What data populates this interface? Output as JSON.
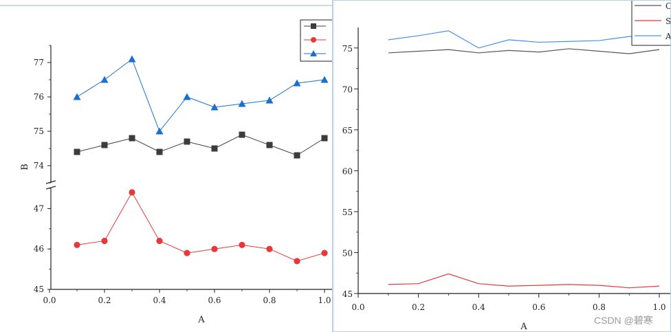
{
  "chart_data": [
    {
      "type": "line",
      "xlabel": "A",
      "ylabel": "B",
      "xlim": [
        0.0,
        1.0
      ],
      "y_upper_range": [
        73.5,
        77.5
      ],
      "y_lower_range": [
        45,
        47.5
      ],
      "axis_break": true,
      "x_ticks": [
        "0.0",
        "0.2",
        "0.4",
        "0.6",
        "0.8",
        "1.0"
      ],
      "y_ticks_upper": [
        "74",
        "75",
        "76",
        "77"
      ],
      "y_ticks_lower": [
        "45",
        "46",
        "47"
      ],
      "legend": {
        "placement": "top-right",
        "labels": [
          "",
          "",
          ""
        ]
      },
      "x": [
        0.1,
        0.2,
        0.3,
        0.4,
        0.5,
        0.6,
        0.7,
        0.8,
        0.9,
        1.0
      ],
      "series": [
        {
          "marker": "square",
          "color": "#3c3c3c",
          "values": [
            74.4,
            74.6,
            74.8,
            74.4,
            74.7,
            74.5,
            74.9,
            74.6,
            74.3,
            74.8
          ]
        },
        {
          "marker": "circle",
          "color": "#e8383b",
          "values": [
            46.1,
            46.2,
            47.4,
            46.2,
            45.9,
            46.0,
            46.1,
            46.0,
            45.7,
            45.9
          ]
        },
        {
          "marker": "triangle",
          "color": "#1a6fd1",
          "values": [
            76.0,
            76.5,
            77.1,
            75.0,
            76.0,
            75.7,
            75.8,
            75.9,
            76.4,
            76.5
          ]
        }
      ]
    },
    {
      "type": "line",
      "xlabel": "A",
      "ylabel": "",
      "xlim": [
        0.0,
        1.0
      ],
      "ylim": [
        45,
        77.5
      ],
      "x_ticks": [
        "0.0",
        "0.2",
        "0.4",
        "0.6",
        "0.8",
        "1.0"
      ],
      "y_ticks": [
        "45",
        "50",
        "55",
        "60",
        "65",
        "70",
        "75"
      ],
      "legend": {
        "placement": "top-right",
        "labels": [
          "C",
          "S",
          "A"
        ]
      },
      "x": [
        0.1,
        0.2,
        0.3,
        0.4,
        0.5,
        0.6,
        0.7,
        0.8,
        0.9,
        1.0
      ],
      "series": [
        {
          "color": "#555555",
          "values": [
            74.4,
            74.6,
            74.8,
            74.4,
            74.7,
            74.5,
            74.9,
            74.6,
            74.3,
            74.8
          ]
        },
        {
          "color": "#e8383b",
          "values": [
            46.1,
            46.2,
            47.4,
            46.2,
            45.9,
            46.0,
            46.1,
            46.0,
            45.7,
            45.9
          ]
        },
        {
          "color": "#4a8df0",
          "values": [
            76.0,
            76.5,
            77.1,
            75.0,
            76.0,
            75.7,
            75.8,
            75.9,
            76.4,
            76.5
          ]
        }
      ]
    }
  ],
  "watermark": "CSDN @碧寒"
}
